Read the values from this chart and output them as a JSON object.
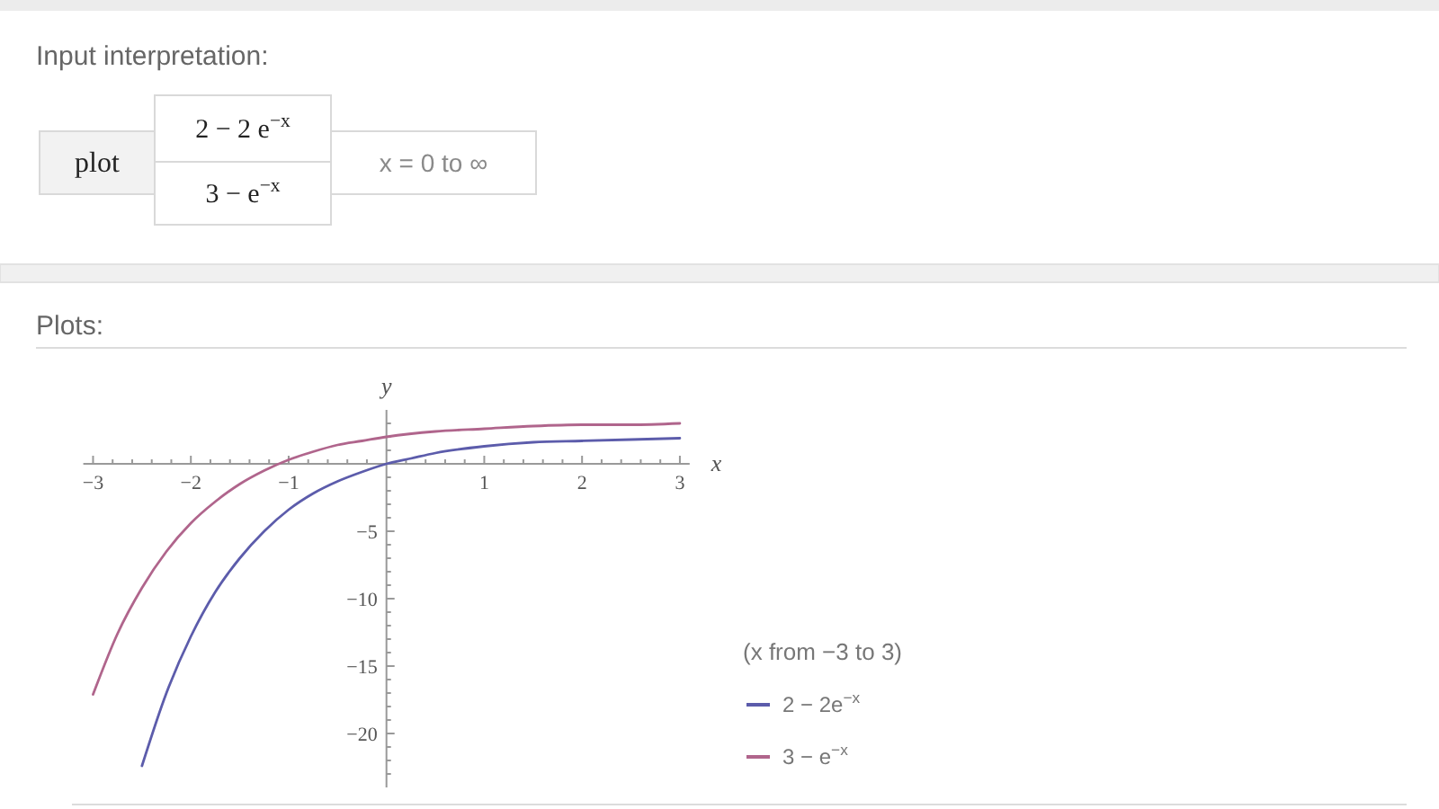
{
  "chart_data": [
    {
      "type": "other",
      "title": "Input interpretation:",
      "annotations": [
        "plot",
        "2 − 2 e$^{−x}$",
        "3 − e$^{−x}$",
        "x = 0 to ∞"
      ]
    },
    {
      "type": "line",
      "title": "Plots:",
      "xlabel": "x",
      "ylabel": "y",
      "legend_title": "(x from −3 to 3)",
      "legend": "right",
      "line_style": "solid",
      "xlim": [
        -3.1,
        3.1
      ],
      "ylim": [
        -24,
        4
      ],
      "xticks": [
        -3,
        {
          "value": -2.8,
          "label": null
        },
        {
          "value": -2.6,
          "label": null
        },
        {
          "value": -2.4,
          "label": null
        },
        {
          "value": -2.2,
          "label": null
        },
        -2,
        {
          "value": -1.8,
          "label": null
        },
        {
          "value": -1.6,
          "label": null
        },
        {
          "value": -1.4,
          "label": null
        },
        {
          "value": -1.2,
          "label": null
        },
        -1,
        {
          "value": -0.8,
          "label": null
        },
        {
          "value": -0.6,
          "label": null
        },
        {
          "value": -0.4,
          "label": null
        },
        {
          "value": -0.2,
          "label": null
        },
        {
          "value": 0.2,
          "label": null
        },
        {
          "value": 0.4,
          "label": null
        },
        {
          "value": 0.6,
          "label": null
        },
        {
          "value": 0.8,
          "label": null
        },
        1,
        {
          "value": 1.2,
          "label": null
        },
        {
          "value": 1.4,
          "label": null
        },
        {
          "value": 1.6,
          "label": null
        },
        {
          "value": 1.8,
          "label": null
        },
        2,
        {
          "value": 2.2,
          "label": null
        },
        {
          "value": 2.4,
          "label": null
        },
        {
          "value": 2.6,
          "label": null
        },
        {
          "value": 2.8,
          "label": null
        },
        3
      ],
      "yticks": [
        {
          "value": -23,
          "label": null
        },
        {
          "value": -22,
          "label": null
        },
        {
          "value": -21,
          "label": null
        },
        -20,
        {
          "value": -19,
          "label": null
        },
        {
          "value": -18,
          "label": null
        },
        {
          "value": -17,
          "label": null
        },
        {
          "value": -16,
          "label": null
        },
        -15,
        {
          "value": -14,
          "label": null
        },
        {
          "value": -13,
          "label": null
        },
        {
          "value": -12,
          "label": null
        },
        {
          "value": -11,
          "label": null
        },
        -10,
        {
          "value": -9,
          "label": null
        },
        {
          "value": -8,
          "label": null
        },
        {
          "value": -7,
          "label": null
        },
        {
          "value": -6,
          "label": null
        },
        -5,
        {
          "value": -4,
          "label": null
        },
        {
          "value": -3,
          "label": null
        },
        {
          "value": -2,
          "label": null
        },
        {
          "value": -1,
          "label": null
        },
        {
          "value": 1,
          "label": null
        },
        {
          "value": 2,
          "label": null
        },
        {
          "value": 3,
          "label": null
        }
      ],
      "series": [
        {
          "name": "2 − 2e$^{−x}$",
          "color": "#5c5cab",
          "x": [
            -2.5,
            -2.25,
            -2,
            -1.75,
            -1.5,
            -1.25,
            -1,
            -0.75,
            -0.5,
            -0.25,
            0,
            0.25,
            0.5,
            1,
            1.5,
            2,
            2.5,
            3
          ],
          "values": [
            -22.4,
            -17.0,
            -12.8,
            -9.5,
            -7.0,
            -5.0,
            -3.4,
            -2.2,
            -1.3,
            -0.6,
            0,
            0.4,
            0.8,
            1.3,
            1.6,
            1.7,
            1.8,
            1.9
          ]
        },
        {
          "name": "3 − e$^{−x}$",
          "color": "#b0658c",
          "x": [
            -3,
            -2.75,
            -2.5,
            -2.25,
            -2,
            -1.75,
            -1.5,
            -1.25,
            -1,
            -0.75,
            -0.5,
            -0.25,
            0,
            0.5,
            1,
            1.5,
            2,
            2.5,
            3
          ],
          "values": [
            -17.1,
            -12.6,
            -9.2,
            -6.5,
            -4.4,
            -2.8,
            -1.5,
            -0.5,
            0.3,
            0.9,
            1.4,
            1.7,
            2,
            2.4,
            2.6,
            2.8,
            2.9,
            2.9,
            3.0
          ]
        }
      ]
    }
  ]
}
